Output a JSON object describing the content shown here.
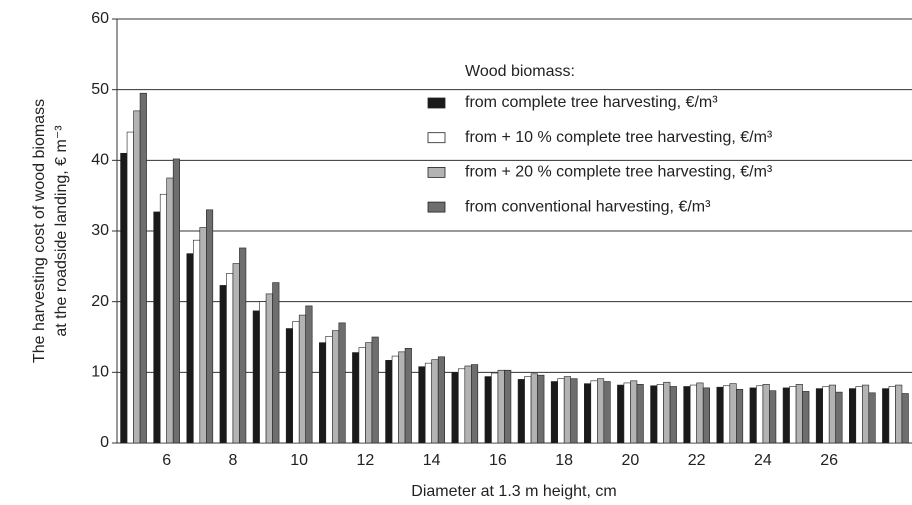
{
  "chart_data": {
    "type": "bar",
    "xlabel": "Diameter at 1.3 m height, cm",
    "ylabel": [
      "The harvesting cost of wood biomass",
      "at the roadside landing, € m⁻³"
    ],
    "legend_title": "Wood biomass:",
    "categories": [
      null,
      "6",
      null,
      "8",
      null,
      "10",
      null,
      "12",
      null,
      "14",
      null,
      "16",
      null,
      "18",
      null,
      "20",
      null,
      "22",
      null,
      "24",
      null,
      "26",
      null,
      null
    ],
    "series": [
      {
        "name": "from complete tree harvesting, €/m³",
        "color": "#1a1a1a",
        "values": [
          41,
          32.7,
          26.8,
          22.3,
          18.7,
          16.2,
          14.2,
          12.8,
          11.7,
          10.8,
          10,
          9.4,
          9,
          8.7,
          8.4,
          8.2,
          8.1,
          8.0,
          7.9,
          7.8,
          7.8,
          7.7,
          7.7,
          7.7
        ]
      },
      {
        "name": "from + 10 % complete tree harvesting, €/m³",
        "color": "#ffffff",
        "values": [
          44,
          35.2,
          28.7,
          24,
          20,
          17.2,
          15.1,
          13.5,
          12.3,
          11.3,
          10.5,
          9.9,
          9.4,
          9.1,
          8.8,
          8.5,
          8.3,
          8.2,
          8.1,
          8.1,
          8.0,
          8.0,
          8.0,
          8.0
        ]
      },
      {
        "name": "from + 20 % complete tree harvesting, €/m³",
        "color": "#b3b3b3",
        "values": [
          47,
          37.5,
          30.5,
          25.4,
          21.1,
          18.1,
          15.9,
          14.2,
          12.9,
          11.8,
          10.9,
          10.3,
          9.8,
          9.4,
          9.1,
          8.8,
          8.6,
          8.5,
          8.4,
          8.3,
          8.3,
          8.2,
          8.2,
          8.2
        ]
      },
      {
        "name": "from conventional harvesting, €/m³",
        "color": "#6e6e6e",
        "values": [
          49.5,
          40.2,
          33,
          27.6,
          22.7,
          19.4,
          17,
          15,
          13.4,
          12.2,
          11.1,
          10.3,
          9.6,
          9.1,
          8.7,
          8.3,
          8.0,
          7.8,
          7.6,
          7.4,
          7.3,
          7.2,
          7.1,
          7.0
        ]
      }
    ],
    "ylim": [
      0,
      60
    ],
    "yticks": [
      0,
      10,
      20,
      30,
      40,
      50,
      60
    ],
    "grid": true
  }
}
